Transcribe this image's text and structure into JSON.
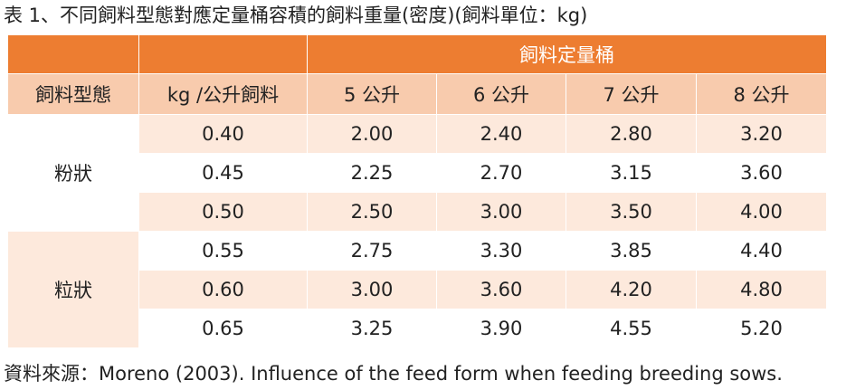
{
  "caption": "表 1、不同飼料型態對應定量桶容積的飼料重量(密度)(飼料單位：kg)",
  "table": {
    "group_header": "飼料定量桶",
    "col_headers": [
      "飼料型態",
      "kg /公升飼料",
      "5 公升",
      "6 公升",
      "7 公升",
      "8 公升"
    ],
    "groups": [
      {
        "form": "粉狀",
        "rows": [
          [
            "0.40",
            "2.00",
            "2.40",
            "2.80",
            "3.20"
          ],
          [
            "0.45",
            "2.25",
            "2.70",
            "3.15",
            "3.60"
          ],
          [
            "0.50",
            "2.50",
            "3.00",
            "3.50",
            "4.00"
          ]
        ]
      },
      {
        "form": "粒狀",
        "rows": [
          [
            "0.55",
            "2.75",
            "3.30",
            "3.85",
            "4.40"
          ],
          [
            "0.60",
            "3.00",
            "3.60",
            "4.20",
            "4.80"
          ],
          [
            "0.65",
            "3.25",
            "3.90",
            "4.55",
            "5.20"
          ]
        ]
      }
    ]
  },
  "source": "資料來源：Moreno (2003). Influence of the feed form when feeding breeding sows.",
  "colors": {
    "header_orange": "#ed7d31",
    "header_light": "#f8cbad",
    "row_light": "#fde9dc"
  }
}
